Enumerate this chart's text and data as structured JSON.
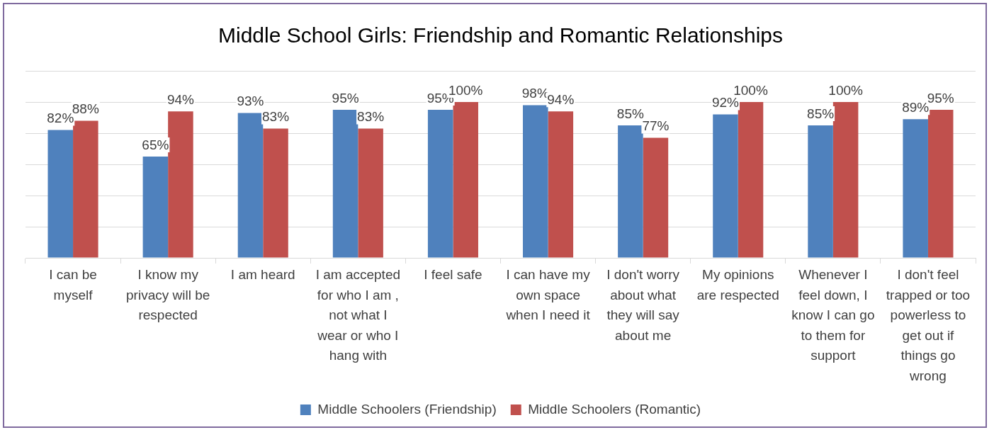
{
  "chart_data": {
    "type": "bar",
    "title": "Middle School Girls: Friendship and Romantic Relationships",
    "categories": [
      "I can be myself",
      "I know my privacy will be respected",
      "I am heard",
      "I am accepted for who I am , not what I wear or who I hang with",
      "I feel safe",
      "I can have my own space when I need it",
      "I don't worry about what they will say about me",
      "My opinions are respected",
      "Whenever I feel down, I know I can go to them for support",
      "I don't feel trapped or too powerless to get out if things go wrong"
    ],
    "series": [
      {
        "name": "Middle Schoolers (Friendship)",
        "color": "#4f81bd",
        "values": [
          82,
          65,
          93,
          95,
          95,
          98,
          85,
          92,
          85,
          89
        ],
        "value_labels": [
          "82%",
          "65%",
          "93%",
          "95%",
          "95%",
          "98%",
          "85%",
          "92%",
          "85%",
          "89%"
        ]
      },
      {
        "name": "Middle Schoolers (Romantic)",
        "color": "#c0504d",
        "values": [
          88,
          94,
          83,
          83,
          100,
          94,
          77,
          100,
          100,
          95
        ],
        "value_labels": [
          "88%",
          "94%",
          "83%",
          "83%",
          "100%",
          "94%",
          "77%",
          "100%",
          "100%",
          "95%"
        ]
      }
    ],
    "ylim": [
      0,
      120
    ],
    "yticks": [
      {
        "value": 0,
        "label": null
      },
      {
        "value": 20,
        "label": null
      },
      {
        "value": 40,
        "label": null
      },
      {
        "value": 60,
        "label": null
      },
      {
        "value": 80,
        "label": null
      },
      {
        "value": 100,
        "label": null
      },
      {
        "value": 120,
        "label": null
      }
    ],
    "tick_labels": "x",
    "grid": "y",
    "legend": "bottom"
  }
}
